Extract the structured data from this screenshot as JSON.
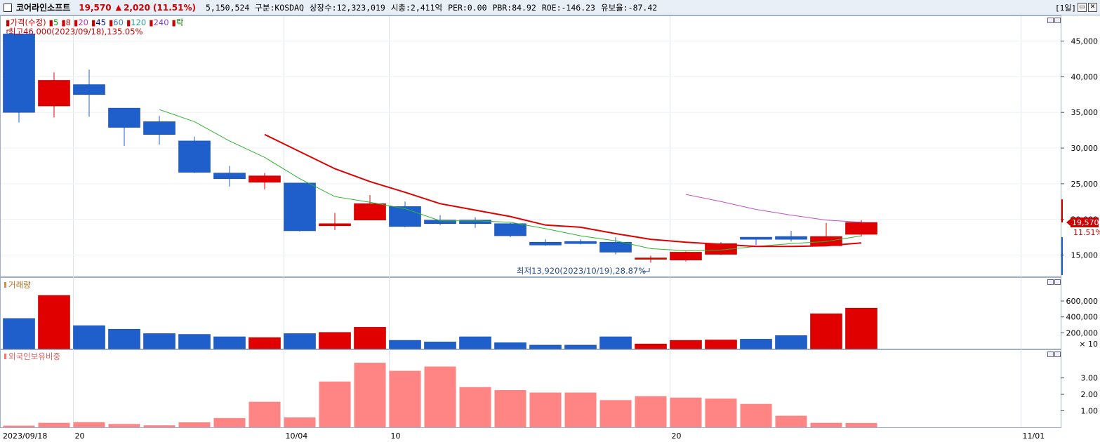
{
  "header": {
    "stock_name": "코어라인소프트",
    "price": "19,570",
    "change_arrow": "▲",
    "change": "2,020",
    "change_pct": "(11.51%)",
    "volume": "5,150,524",
    "market": "구분:KOSDAQ",
    "listed_shares": "상장수:12,323,019",
    "market_cap": "시총:2,411억",
    "per": "PER:0.00",
    "pbr": "PBR:84.92",
    "roe": "ROE:-146.23",
    "retention": "유보율:-87.42",
    "period": "[1일]"
  },
  "price_panel": {
    "legend": [
      {
        "label": "가격(수정)",
        "color": "#e00000"
      },
      {
        "label": "5",
        "color": "#00a000"
      },
      {
        "label": "8",
        "color": "#e00000"
      },
      {
        "label": "20",
        "color": "#c030c0"
      },
      {
        "label": "45",
        "color": "#000080"
      },
      {
        "label": "60",
        "color": "#3080c0"
      },
      {
        "label": "120",
        "color": "#20a0a0"
      },
      {
        "label": "240",
        "color": "#8040c0"
      },
      {
        "label": "락",
        "color": "#008000"
      }
    ],
    "high_note": "최고46,000(2023/09/18),135.05%",
    "low_note": "최저13,920(2023/10/19),28.87%",
    "current_price_tag": "19,570",
    "current_pct_tag": "11.51%",
    "y_ticks": [
      "45,000",
      "40,000",
      "35,000",
      "30,000",
      "25,000",
      "20,000",
      "15,000"
    ]
  },
  "volume_panel": {
    "legend": "거래량",
    "y_ticks": [
      "600,000",
      "400,000",
      "200,000"
    ],
    "unit": "× 10"
  },
  "foreign_panel": {
    "legend": "외국인보유비중",
    "y_ticks": [
      "3.00",
      "2.00",
      "1.00"
    ]
  },
  "x_axis": [
    "2023/09/18",
    "20",
    "10/04",
    "10",
    "20",
    "11/01"
  ],
  "colors": {
    "up": "#e00000",
    "down": "#1f5fcc",
    "foreign": "#ff8585",
    "ma5": "#2cb52c",
    "ma8": "#e00000",
    "ma20": "#c050c0"
  },
  "chart_data": [
    {
      "type": "candlestick",
      "title": "가격(수정)",
      "ylim": [
        12000,
        48500
      ],
      "candles": [
        {
          "o": 46000,
          "h": 46000,
          "l": 33600,
          "c": 35000
        },
        {
          "o": 35900,
          "h": 40600,
          "l": 34300,
          "c": 39500
        },
        {
          "o": 38900,
          "h": 41000,
          "l": 34400,
          "c": 37500
        },
        {
          "o": 35600,
          "h": 35600,
          "l": 30300,
          "c": 32900
        },
        {
          "o": 33700,
          "h": 34500,
          "l": 30500,
          "c": 31900
        },
        {
          "o": 31000,
          "h": 31600,
          "l": 26500,
          "c": 26600
        },
        {
          "o": 26500,
          "h": 27500,
          "l": 24600,
          "c": 25700
        },
        {
          "o": 25200,
          "h": 26500,
          "l": 24200,
          "c": 26100
        },
        {
          "o": 25100,
          "h": 25100,
          "l": 18300,
          "c": 18400
        },
        {
          "o": 19100,
          "h": 20900,
          "l": 18500,
          "c": 19400
        },
        {
          "o": 19900,
          "h": 23400,
          "l": 19900,
          "c": 22200
        },
        {
          "o": 21800,
          "h": 22500,
          "l": 18900,
          "c": 19000
        },
        {
          "o": 19900,
          "h": 20600,
          "l": 19200,
          "c": 19400
        },
        {
          "o": 19900,
          "h": 20300,
          "l": 18800,
          "c": 19400
        },
        {
          "o": 19400,
          "h": 19500,
          "l": 17500,
          "c": 17700
        },
        {
          "o": 16800,
          "h": 17200,
          "l": 16300,
          "c": 16400
        },
        {
          "o": 16900,
          "h": 17200,
          "l": 16500,
          "c": 16600
        },
        {
          "o": 16800,
          "h": 17500,
          "l": 15100,
          "c": 15400
        },
        {
          "o": 14400,
          "h": 14900,
          "l": 13920,
          "c": 14600
        },
        {
          "o": 14300,
          "h": 15500,
          "l": 14100,
          "c": 15400
        },
        {
          "o": 15100,
          "h": 16800,
          "l": 15000,
          "c": 16600
        },
        {
          "o": 17500,
          "h": 17500,
          "l": 16400,
          "c": 17200
        },
        {
          "o": 17600,
          "h": 18400,
          "l": 16900,
          "c": 17200
        },
        {
          "o": 16300,
          "h": 19500,
          "l": 16300,
          "c": 17600
        },
        {
          "o": 17900,
          "h": 19900,
          "l": 17600,
          "c": 19570
        }
      ],
      "ma5": [
        null,
        null,
        null,
        null,
        35400,
        33700,
        31000,
        28700,
        25700,
        23200,
        22400,
        21500,
        19800,
        19800,
        19600,
        18700,
        17700,
        17000,
        15900,
        15600,
        15700,
        16200,
        16600,
        16900,
        17700
      ],
      "ma8": [
        null,
        null,
        null,
        null,
        null,
        null,
        null,
        31900,
        29500,
        27100,
        25300,
        23800,
        22200,
        21300,
        20400,
        19200,
        18900,
        18000,
        17200,
        16800,
        16500,
        16200,
        16200,
        16300,
        16700
      ],
      "ma20": [
        null,
        null,
        null,
        null,
        null,
        null,
        null,
        null,
        null,
        null,
        null,
        null,
        null,
        null,
        null,
        null,
        null,
        null,
        null,
        23500,
        22500,
        21400,
        20600,
        19900,
        19600
      ]
    },
    {
      "type": "bar",
      "title": "거래량",
      "unit": "× 10",
      "ylim": [
        0,
        750000
      ],
      "values": [
        380000,
        670000,
        290000,
        245000,
        190000,
        180000,
        150000,
        140000,
        190000,
        205000,
        270000,
        105000,
        85000,
        150000,
        75000,
        45000,
        45000,
        150000,
        60000,
        105000,
        110000,
        120000,
        165000,
        440000,
        510000
      ],
      "up": [
        false,
        true,
        false,
        false,
        false,
        false,
        false,
        true,
        false,
        true,
        true,
        false,
        false,
        false,
        false,
        false,
        false,
        false,
        true,
        true,
        true,
        false,
        false,
        true,
        true
      ]
    },
    {
      "type": "bar",
      "title": "외국인보유비중",
      "ylim": [
        0,
        4.05
      ],
      "values": [
        0.1,
        0.27,
        0.31,
        0.2,
        0.12,
        0.3,
        0.56,
        1.55,
        0.6,
        2.78,
        3.92,
        3.43,
        3.69,
        2.44,
        2.26,
        2.11,
        2.11,
        1.65,
        1.89,
        1.8,
        1.74,
        1.42,
        0.7,
        0.27,
        0.26
      ]
    }
  ]
}
